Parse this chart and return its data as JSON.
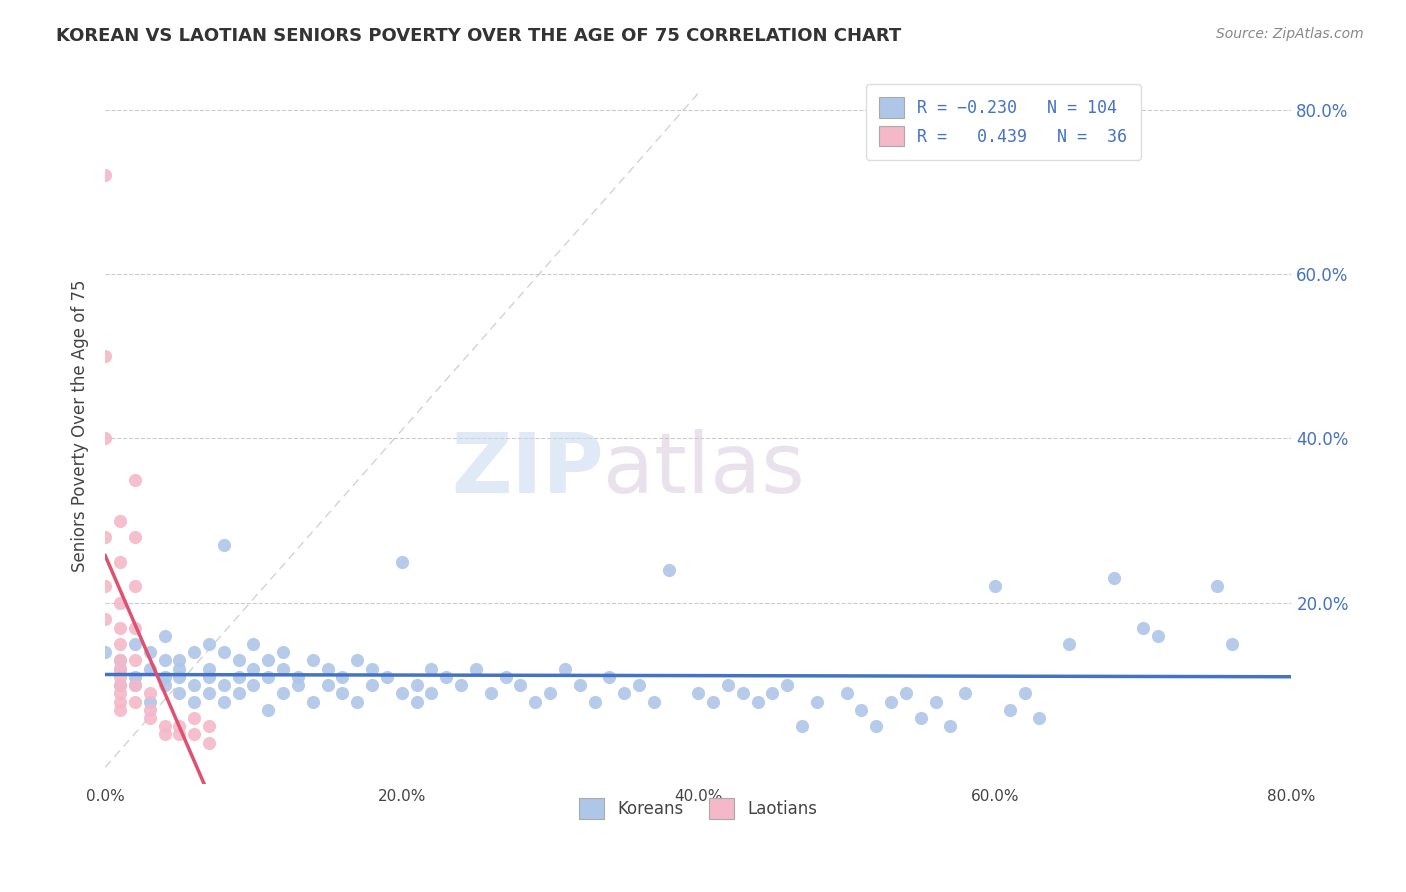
{
  "title": "KOREAN VS LAOTIAN SENIORS POVERTY OVER THE AGE OF 75 CORRELATION CHART",
  "source_text": "Source: ZipAtlas.com",
  "ylabel": "Seniors Poverty Over the Age of 75",
  "xlim": [
    0.0,
    0.8
  ],
  "ylim": [
    -0.02,
    0.85
  ],
  "xtick_labels": [
    "0.0%",
    "20.0%",
    "40.0%",
    "60.0%",
    "80.0%"
  ],
  "xtick_values": [
    0.0,
    0.2,
    0.4,
    0.6,
    0.8
  ],
  "ytick_labels": [
    "20.0%",
    "40.0%",
    "60.0%",
    "80.0%"
  ],
  "ytick_values": [
    0.2,
    0.4,
    0.6,
    0.8
  ],
  "korean_color": "#aec6e8",
  "laotian_color": "#f4b8c8",
  "korean_line_color": "#4472c4",
  "laotian_line_color": "#e05070",
  "watermark_zip": "ZIP",
  "watermark_atlas": "atlas",
  "korean_points": [
    [
      0.0,
      0.14
    ],
    [
      0.01,
      0.13
    ],
    [
      0.01,
      0.1
    ],
    [
      0.01,
      0.12
    ],
    [
      0.02,
      0.11
    ],
    [
      0.02,
      0.15
    ],
    [
      0.02,
      0.1
    ],
    [
      0.03,
      0.14
    ],
    [
      0.03,
      0.12
    ],
    [
      0.03,
      0.08
    ],
    [
      0.04,
      0.13
    ],
    [
      0.04,
      0.11
    ],
    [
      0.04,
      0.1
    ],
    [
      0.04,
      0.16
    ],
    [
      0.05,
      0.13
    ],
    [
      0.05,
      0.09
    ],
    [
      0.05,
      0.12
    ],
    [
      0.05,
      0.11
    ],
    [
      0.06,
      0.14
    ],
    [
      0.06,
      0.1
    ],
    [
      0.06,
      0.08
    ],
    [
      0.07,
      0.15
    ],
    [
      0.07,
      0.12
    ],
    [
      0.07,
      0.09
    ],
    [
      0.07,
      0.11
    ],
    [
      0.08,
      0.27
    ],
    [
      0.08,
      0.14
    ],
    [
      0.08,
      0.1
    ],
    [
      0.08,
      0.08
    ],
    [
      0.09,
      0.13
    ],
    [
      0.09,
      0.11
    ],
    [
      0.09,
      0.09
    ],
    [
      0.1,
      0.12
    ],
    [
      0.1,
      0.1
    ],
    [
      0.1,
      0.15
    ],
    [
      0.11,
      0.13
    ],
    [
      0.11,
      0.11
    ],
    [
      0.11,
      0.07
    ],
    [
      0.12,
      0.14
    ],
    [
      0.12,
      0.09
    ],
    [
      0.12,
      0.12
    ],
    [
      0.13,
      0.11
    ],
    [
      0.13,
      0.1
    ],
    [
      0.14,
      0.13
    ],
    [
      0.14,
      0.08
    ],
    [
      0.15,
      0.12
    ],
    [
      0.15,
      0.1
    ],
    [
      0.16,
      0.11
    ],
    [
      0.16,
      0.09
    ],
    [
      0.17,
      0.13
    ],
    [
      0.17,
      0.08
    ],
    [
      0.18,
      0.1
    ],
    [
      0.18,
      0.12
    ],
    [
      0.19,
      0.11
    ],
    [
      0.2,
      0.09
    ],
    [
      0.2,
      0.25
    ],
    [
      0.21,
      0.1
    ],
    [
      0.21,
      0.08
    ],
    [
      0.22,
      0.12
    ],
    [
      0.22,
      0.09
    ],
    [
      0.23,
      0.11
    ],
    [
      0.24,
      0.1
    ],
    [
      0.25,
      0.12
    ],
    [
      0.26,
      0.09
    ],
    [
      0.27,
      0.11
    ],
    [
      0.28,
      0.1
    ],
    [
      0.29,
      0.08
    ],
    [
      0.3,
      0.09
    ],
    [
      0.31,
      0.12
    ],
    [
      0.32,
      0.1
    ],
    [
      0.33,
      0.08
    ],
    [
      0.34,
      0.11
    ],
    [
      0.35,
      0.09
    ],
    [
      0.36,
      0.1
    ],
    [
      0.37,
      0.08
    ],
    [
      0.38,
      0.24
    ],
    [
      0.4,
      0.09
    ],
    [
      0.41,
      0.08
    ],
    [
      0.42,
      0.1
    ],
    [
      0.43,
      0.09
    ],
    [
      0.44,
      0.08
    ],
    [
      0.45,
      0.09
    ],
    [
      0.46,
      0.1
    ],
    [
      0.47,
      0.05
    ],
    [
      0.48,
      0.08
    ],
    [
      0.5,
      0.09
    ],
    [
      0.51,
      0.07
    ],
    [
      0.52,
      0.05
    ],
    [
      0.53,
      0.08
    ],
    [
      0.54,
      0.09
    ],
    [
      0.55,
      0.06
    ],
    [
      0.56,
      0.08
    ],
    [
      0.57,
      0.05
    ],
    [
      0.58,
      0.09
    ],
    [
      0.6,
      0.22
    ],
    [
      0.61,
      0.07
    ],
    [
      0.62,
      0.09
    ],
    [
      0.63,
      0.06
    ],
    [
      0.65,
      0.15
    ],
    [
      0.68,
      0.23
    ],
    [
      0.7,
      0.17
    ],
    [
      0.71,
      0.16
    ],
    [
      0.75,
      0.22
    ],
    [
      0.76,
      0.15
    ]
  ],
  "laotian_points": [
    [
      0.0,
      0.72
    ],
    [
      0.0,
      0.5
    ],
    [
      0.0,
      0.4
    ],
    [
      0.0,
      0.28
    ],
    [
      0.0,
      0.22
    ],
    [
      0.0,
      0.18
    ],
    [
      0.01,
      0.3
    ],
    [
      0.01,
      0.25
    ],
    [
      0.01,
      0.2
    ],
    [
      0.01,
      0.17
    ],
    [
      0.01,
      0.15
    ],
    [
      0.01,
      0.13
    ],
    [
      0.01,
      0.11
    ],
    [
      0.01,
      0.09
    ],
    [
      0.01,
      0.08
    ],
    [
      0.01,
      0.12
    ],
    [
      0.01,
      0.1
    ],
    [
      0.01,
      0.07
    ],
    [
      0.02,
      0.35
    ],
    [
      0.02,
      0.28
    ],
    [
      0.02,
      0.22
    ],
    [
      0.02,
      0.17
    ],
    [
      0.02,
      0.13
    ],
    [
      0.02,
      0.1
    ],
    [
      0.02,
      0.08
    ],
    [
      0.03,
      0.09
    ],
    [
      0.03,
      0.07
    ],
    [
      0.03,
      0.06
    ],
    [
      0.04,
      0.05
    ],
    [
      0.04,
      0.04
    ],
    [
      0.05,
      0.05
    ],
    [
      0.05,
      0.04
    ],
    [
      0.06,
      0.06
    ],
    [
      0.06,
      0.04
    ],
    [
      0.07,
      0.05
    ],
    [
      0.07,
      0.03
    ]
  ]
}
